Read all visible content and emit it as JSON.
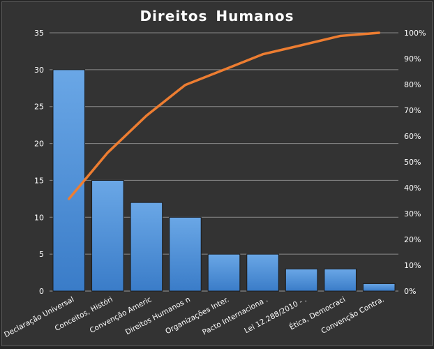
{
  "chart_data": {
    "type": "bar",
    "title": "Direitos  Humanos",
    "categories": [
      "Declaração Universal",
      "Conceitos, Históri",
      "Convenção Americ",
      "Direitos Humanos n",
      "Organizações Inter.",
      "Pacto Internaciona .",
      "Lei 12.288/2010 - .",
      "Ética, Democraci",
      "Convenção Contra."
    ],
    "values": [
      30,
      15,
      12,
      10,
      5,
      5,
      3,
      3,
      1
    ],
    "cumulative_percent": [
      35.7,
      53.6,
      67.9,
      79.8,
      85.7,
      91.7,
      95.2,
      98.8,
      100
    ],
    "ylim": [
      0,
      35
    ],
    "y_ticks": [
      "0",
      "5",
      "10",
      "15",
      "20",
      "25",
      "30",
      "35"
    ],
    "y2lim": [
      0,
      100
    ],
    "y2_ticks": [
      "0%",
      "10%",
      "20%",
      "30%",
      "40%",
      "50%",
      "60%",
      "70%",
      "80%",
      "90%",
      "100%"
    ],
    "grid": true,
    "colors": {
      "bar": "#4f8fd6",
      "line": "#ed7d31",
      "background": "#333333",
      "text": "#ffffff"
    }
  }
}
